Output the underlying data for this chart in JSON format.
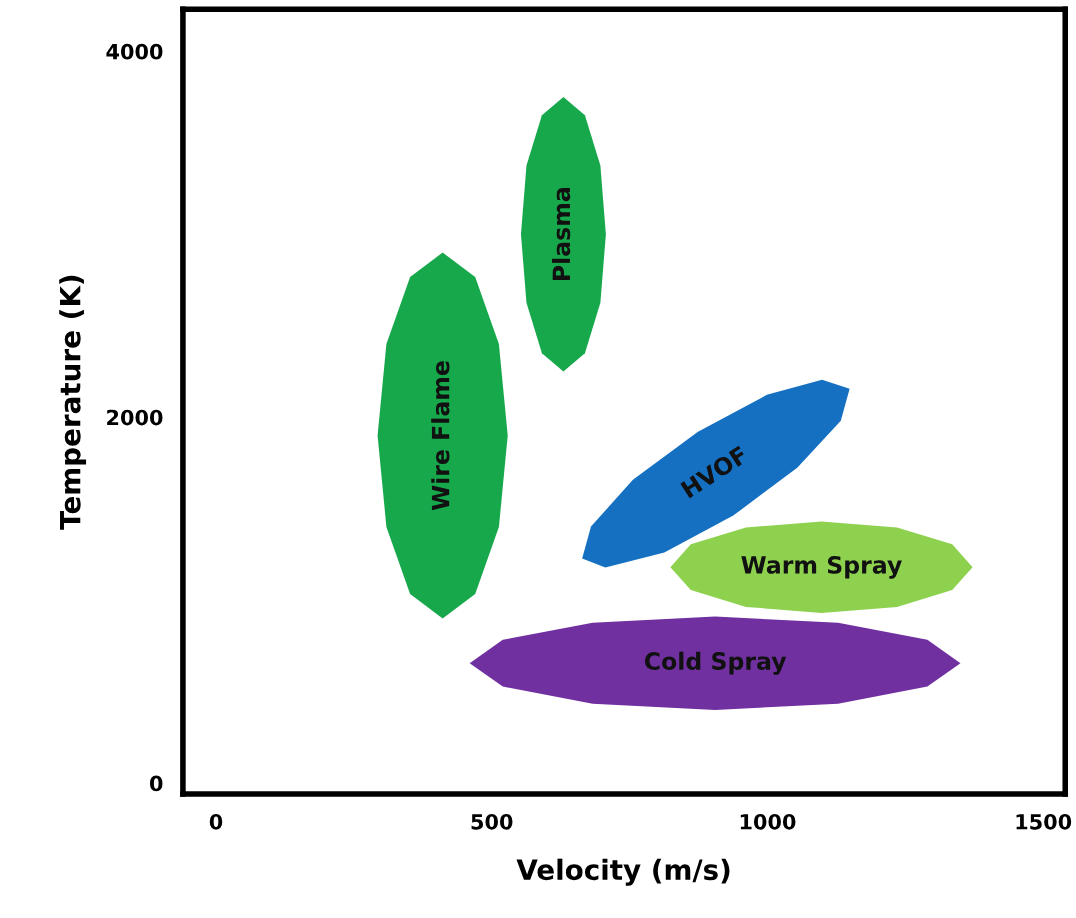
{
  "chart_data": {
    "type": "area",
    "xlabel": "Velocity (m/s)",
    "ylabel": "Temperature (K)",
    "xlim": [
      -60,
      1540
    ],
    "ylim": [
      -60,
      4230
    ],
    "xticks": [
      0,
      500,
      1000,
      1500
    ],
    "yticks": [
      0,
      2000,
      4000
    ],
    "grid": false,
    "legend": false,
    "series": [
      {
        "name": "Wire Flame",
        "color": "#17a84c",
        "x": [
          529,
          513,
          470,
          411,
          352,
          309,
          293,
          309,
          352,
          411,
          470,
          513
        ],
        "values": [
          1900,
          2400,
          2766,
          2900,
          2766,
          2400,
          1900,
          1400,
          1034,
          900,
          1034,
          1400
        ]
      },
      {
        "name": "Plasma",
        "color": "#17a84c",
        "x": [
          707,
          697,
          669,
          630,
          591,
          563,
          553,
          563,
          591,
          630,
          669,
          697
        ],
        "values": [
          3000,
          3375,
          3650,
          3750,
          3650,
          3375,
          3000,
          2625,
          2350,
          2250,
          2350,
          2625
        ]
      },
      {
        "name": "HVOF",
        "color": "#1570c2",
        "x": [
          1149,
          1133,
          1054,
          938,
          813,
          706,
          664,
          680,
          756,
          874,
          999,
          1099
        ],
        "values": [
          2155,
          1980,
          1724,
          1462,
          1260,
          1178,
          1227,
          1402,
          1658,
          1920,
          2122,
          2204
        ]
      },
      {
        "name": "Warm Spray",
        "color": "#8dd14f",
        "x": [
          1372,
          1335,
          1235,
          1098,
          961,
          861,
          824,
          861,
          961,
          1098,
          1235,
          1335
        ],
        "values": [
          1180,
          1305,
          1397,
          1430,
          1397,
          1305,
          1180,
          1055,
          963,
          930,
          963,
          1055
        ]
      },
      {
        "name": "Cold Spray",
        "color": "#7030a0",
        "x": [
          1350,
          1290,
          1128,
          905,
          683,
          520,
          460,
          520,
          683,
          905,
          1128,
          1290
        ],
        "values": [
          655,
          783,
          876,
          910,
          876,
          783,
          655,
          528,
          434,
          400,
          434,
          528
        ]
      }
    ]
  }
}
